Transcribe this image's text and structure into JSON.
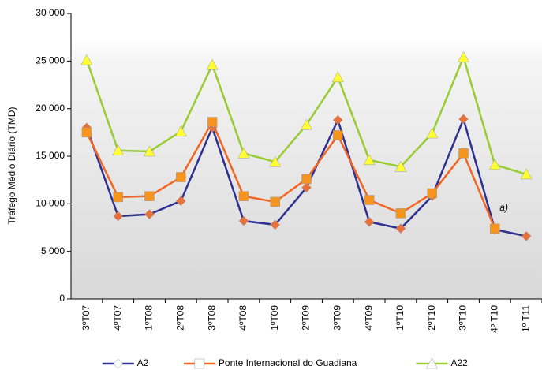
{
  "chart_data": {
    "type": "line",
    "y_label": "Tráfego Médio Diário (TMD)",
    "categories": [
      "3ºT07",
      "4ºT07",
      "1ºT08",
      "2ºT08",
      "3ºT08",
      "4ºT08",
      "1ºT09",
      "2ºT09",
      "3ºT09",
      "4ºT09",
      "1ºT10",
      "2ºT10",
      "3ºT10",
      "4º T10",
      "1º T11"
    ],
    "series": [
      {
        "name": "A2",
        "color": "#2e3192",
        "marker": "diamond",
        "marker_color": "#e8703a",
        "values": [
          18000,
          8700,
          8900,
          10300,
          18000,
          8200,
          7800,
          11700,
          18800,
          8100,
          7400,
          10800,
          18900,
          7300,
          6600
        ]
      },
      {
        "name": "Ponte Internacional do Guadiana",
        "color": "#f26522",
        "marker": "square",
        "marker_color": "#f7941d",
        "values": [
          17500,
          10700,
          10800,
          12800,
          18600,
          10800,
          10200,
          12600,
          17200,
          10400,
          9000,
          11100,
          15300,
          7400,
          null
        ]
      },
      {
        "name": "A22",
        "color": "#99cc33",
        "marker": "triangle",
        "marker_color": "#ffff33",
        "values": [
          25100,
          15600,
          15500,
          17600,
          24600,
          15300,
          14400,
          18300,
          23300,
          14600,
          13900,
          17400,
          25400,
          14100,
          13100
        ]
      }
    ],
    "annotation": "a)",
    "ylim": [
      0,
      30000
    ],
    "yticks": [
      {
        "value": 0,
        "label": "0"
      },
      {
        "value": 5000,
        "label": "5 000"
      },
      {
        "value": 10000,
        "label": "10 000"
      },
      {
        "value": 15000,
        "label": "15 000"
      },
      {
        "value": 20000,
        "label": "20 000"
      },
      {
        "value": 25000,
        "label": "25 000"
      },
      {
        "value": 30000,
        "label": "30 000"
      }
    ]
  }
}
